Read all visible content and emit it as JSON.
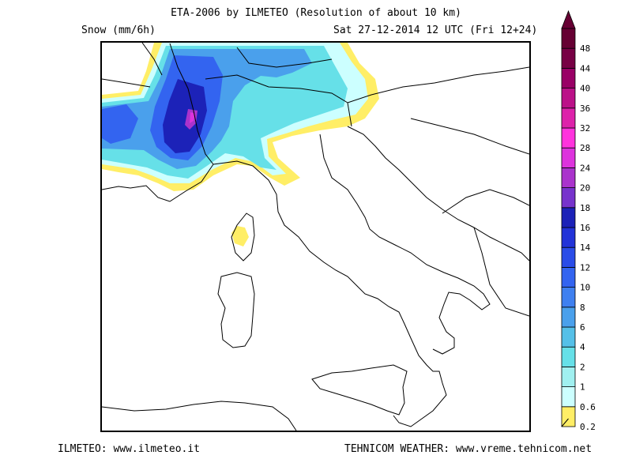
{
  "header": {
    "title": "ETA-2006 by ILMETEO (Resolution of about 10 km)",
    "field": "Snow (mm/6h)",
    "valid_time": "Sat 27-12-2014 12 UTC (Fri 12+24)"
  },
  "footer": {
    "left": "ILMETEO: www.ilmeteo.it",
    "right": "TEHNICOM WEATHER: www.vreme.tehnicom.net"
  },
  "legend": {
    "levels": [
      {
        "label": "0.2",
        "color": "#ffee66"
      },
      {
        "label": "0.6",
        "color": "#ccffff"
      },
      {
        "label": "1",
        "color": "#a0f0f0"
      },
      {
        "label": "2",
        "color": "#66e0e8"
      },
      {
        "label": "4",
        "color": "#55c0e8"
      },
      {
        "label": "6",
        "color": "#4aa0ec"
      },
      {
        "label": "8",
        "color": "#3f80f0"
      },
      {
        "label": "10",
        "color": "#3364f0"
      },
      {
        "label": "12",
        "color": "#2a4ce8"
      },
      {
        "label": "14",
        "color": "#2233d8"
      },
      {
        "label": "16",
        "color": "#1c22b8"
      },
      {
        "label": "18",
        "color": "#7733cc"
      },
      {
        "label": "20",
        "color": "#aa33cc"
      },
      {
        "label": "24",
        "color": "#dd33dd"
      },
      {
        "label": "28",
        "color": "#ff33dd"
      },
      {
        "label": "32",
        "color": "#dd22aa"
      },
      {
        "label": "36",
        "color": "#bb1188"
      },
      {
        "label": "40",
        "color": "#990066"
      },
      {
        "label": "44",
        "color": "#770044"
      },
      {
        "label": "48",
        "color": "#660033"
      }
    ]
  }
}
